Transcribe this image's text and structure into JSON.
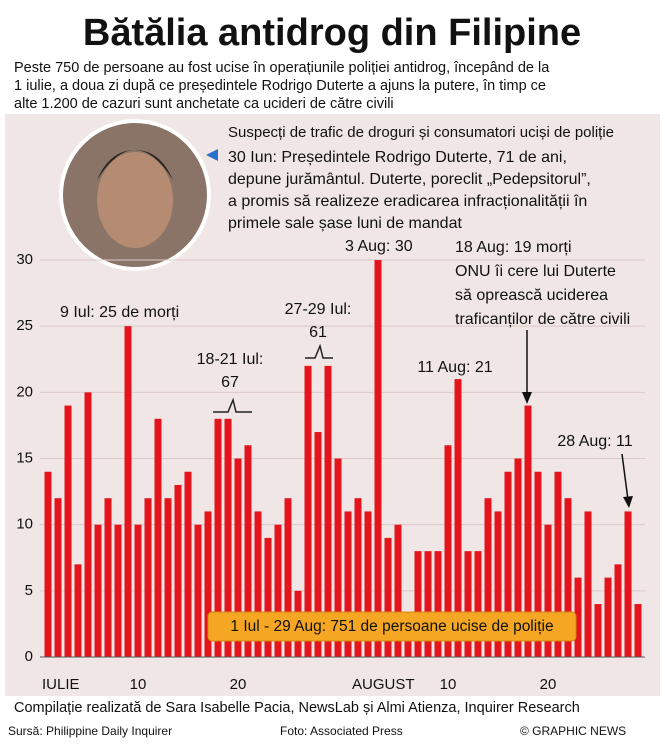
{
  "chart_data": {
    "type": "bar",
    "title": "Bătălia antidrog din Filipine",
    "subtitle": [
      "Peste 750 de persoane au fost ucise în operațiunile poliției antidrog, începând de la",
      "1 iulie, a doua zi după ce președintele Rodrigo Duterte a ajuns la putere, în timp ce",
      "alte 1.200 de cazuri sunt anchetate ca ucideri de către civili"
    ],
    "categories": [
      "IULIE",
      null,
      null,
      null,
      null,
      null,
      null,
      null,
      null,
      "10",
      null,
      null,
      null,
      null,
      null,
      null,
      null,
      null,
      null,
      "20",
      null,
      null,
      null,
      null,
      null,
      null,
      null,
      null,
      null,
      null,
      null,
      "AUGUST",
      null,
      null,
      null,
      null,
      null,
      null,
      null,
      null,
      "10",
      null,
      null,
      null,
      null,
      null,
      null,
      null,
      null,
      null,
      "20",
      null,
      null,
      null,
      null,
      null,
      null,
      null,
      null,
      null
    ],
    "values": [
      14,
      12,
      19,
      7,
      20,
      10,
      12,
      10,
      25,
      10,
      12,
      18,
      12,
      13,
      14,
      10,
      11,
      18,
      18,
      15,
      16,
      11,
      9,
      10,
      12,
      5,
      22,
      17,
      22,
      15,
      11,
      12,
      11,
      30,
      9,
      10,
      2,
      8,
      8,
      8,
      16,
      21,
      8,
      8,
      12,
      11,
      14,
      15,
      19,
      14,
      10,
      14,
      12,
      6,
      11,
      4,
      6,
      7,
      11,
      4
    ],
    "color": "#e3141b",
    "ylim": [
      0,
      30
    ],
    "yticks": [
      0,
      5,
      10,
      15,
      20,
      25,
      30
    ],
    "grid": true,
    "annotations": {
      "heading": "Suspecți de trafic de droguri și consumatori uciși de poliție",
      "inauguration": [
        "30 Iun: Președintele Rodrigo Duterte, 71 de ani,",
        "depune jurământul. Duterte, poreclit „Pedepsitorul”,",
        "a promis să realizeze eradicarea infracționalității în",
        "primele sale șase luni de mandat"
      ],
      "jul9": "9 Iul: 25 de morți",
      "jul18_21": [
        "18-21 Iul:",
        "67"
      ],
      "jul27_29": [
        "27-29 Iul:",
        "61"
      ],
      "aug3": "3 Aug: 30",
      "aug11": "11 Aug: 21",
      "aug18": [
        "18 Aug: 19 morți",
        "ONU îi cere lui Duterte",
        "să oprească uciderea",
        "traficanților de către civili"
      ],
      "aug28": "28 Aug: 11",
      "total": "1 Iul - 29 Aug: 751 de persoane ucise de poliție"
    },
    "credits": "Compilație realizată de Sara Isabelle Pacia, NewsLab și Almi Atienza, Inquirer Research",
    "source": "Sursă: Philippine Daily Inquirer",
    "photo": "Foto: Associated Press",
    "publisher": "© GRAPHIC NEWS"
  }
}
